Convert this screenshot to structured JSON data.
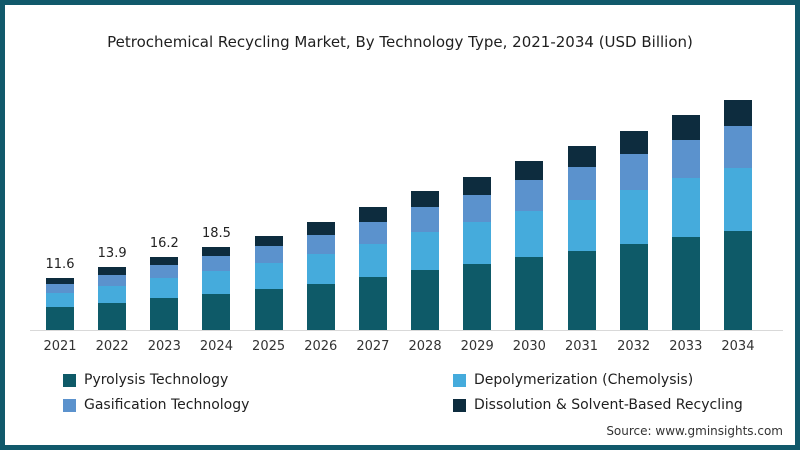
{
  "frame": {
    "border_color": "#11596B",
    "background": "#FFFFFF"
  },
  "source_text": "Source: www.gminsights.com",
  "axis": {
    "line_color": "#D9D9D9"
  },
  "chart_data": {
    "type": "bar",
    "variant": "stacked-column",
    "title": "Petrochemical Recycling Market, By Technology Type, 2021-2034 (USD Billion)",
    "unit": "USD Billion",
    "xlabel": "",
    "ylabel": "",
    "grid": false,
    "legend_position": "bottom",
    "ylim": [
      0,
      55
    ],
    "categories": [
      "2021",
      "2022",
      "2023",
      "2024",
      "2025",
      "2026",
      "2027",
      "2028",
      "2029",
      "2030",
      "2031",
      "2032",
      "2033",
      "2034"
    ],
    "series": [
      {
        "name": "Pyrolysis Technology",
        "color": "#0E5A68",
        "values": [
          5.0,
          6.0,
          7.0,
          8.0,
          9.0,
          10.3,
          11.7,
          13.3,
          14.6,
          16.2,
          17.6,
          19.0,
          20.6,
          22.0
        ]
      },
      {
        "name": "Depolymerization (Chemolysis)",
        "color": "#45ABDC",
        "values": [
          3.2,
          3.8,
          4.5,
          5.1,
          5.8,
          6.6,
          7.5,
          8.5,
          9.4,
          10.3,
          11.2,
          12.2,
          13.1,
          14.1
        ]
      },
      {
        "name": "Gasification Technology",
        "color": "#5B92CD",
        "values": [
          2.1,
          2.5,
          2.9,
          3.3,
          3.8,
          4.3,
          4.9,
          5.6,
          6.1,
          6.8,
          7.4,
          8.0,
          8.6,
          9.2
        ]
      },
      {
        "name": "Dissolution & Solvent-Based Recycling",
        "color": "#0D2C3E",
        "values": [
          1.3,
          1.6,
          1.8,
          2.1,
          2.4,
          2.8,
          3.2,
          3.5,
          3.9,
          4.3,
          4.7,
          5.1,
          5.5,
          5.9
        ]
      }
    ],
    "totals": [
      11.6,
      13.9,
      16.2,
      18.5,
      21.0,
      24.0,
      27.3,
      30.9,
      34.0,
      37.6,
      40.9,
      44.3,
      47.8,
      51.2
    ],
    "bar_labels": [
      "11.6",
      "13.9",
      "16.2",
      "18.5",
      null,
      null,
      null,
      null,
      null,
      null,
      null,
      null,
      null,
      null
    ]
  }
}
